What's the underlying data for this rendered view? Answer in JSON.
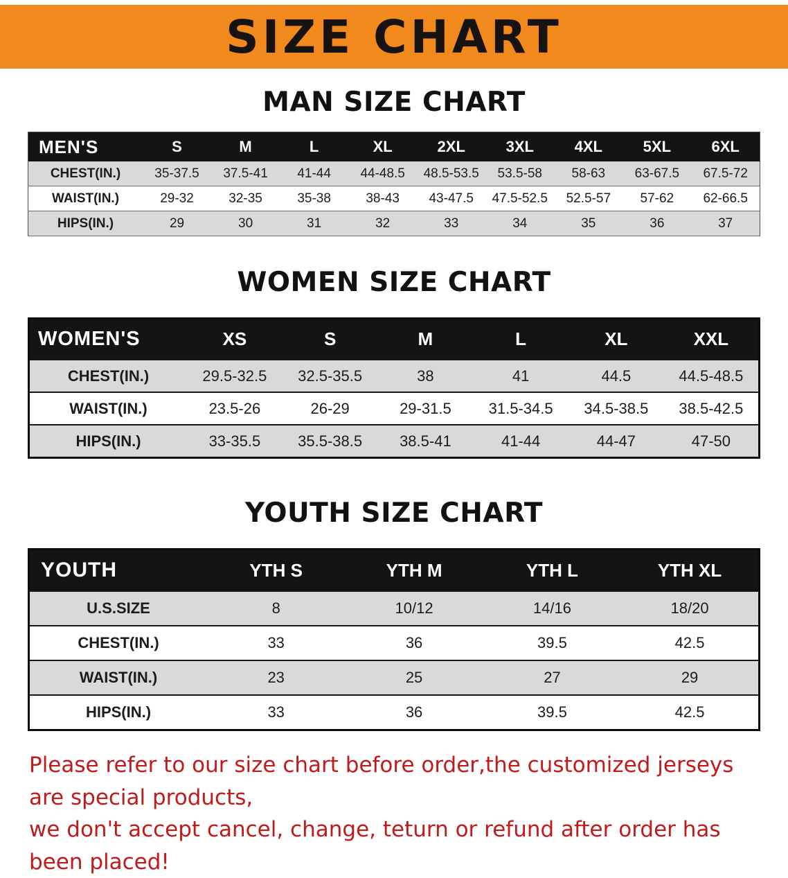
{
  "page": {
    "title": "SIZE CHART"
  },
  "colors": {
    "banner_bg": "#F2891C",
    "banner_text": "#171310",
    "header_row_bg": "#141414",
    "header_row_text": "#FFFFFF",
    "row_shade_bg": "#D9D9D9",
    "row_plain_bg": "#FFFFFF",
    "note_text": "#C21A1A"
  },
  "sections": [
    {
      "id": "man",
      "heading": "MAN SIZE CHART",
      "table": {
        "label_header": "MEN'S",
        "size_headers": [
          "S",
          "M",
          "L",
          "XL",
          "2XL",
          "3XL",
          "4XL",
          "5XL",
          "6XL"
        ],
        "rows": [
          {
            "label": "CHEST(IN.)",
            "values": [
              "35-37.5",
              "37.5-41",
              "41-44",
              "44-48.5",
              "48.5-53.5",
              "53.5-58",
              "58-63",
              "63-67.5",
              "67.5-72"
            ]
          },
          {
            "label": "WAIST(IN.)",
            "values": [
              "29-32",
              "32-35",
              "35-38",
              "38-43",
              "43-47.5",
              "47.5-52.5",
              "52.5-57",
              "57-62",
              "62-66.5"
            ]
          },
          {
            "label": "HIPS(IN.)",
            "values": [
              "29",
              "30",
              "31",
              "32",
              "33",
              "34",
              "35",
              "36",
              "37"
            ]
          }
        ]
      }
    },
    {
      "id": "women",
      "heading": "WOMEN SIZE CHART",
      "table": {
        "label_header": "WOMEN'S",
        "size_headers": [
          "XS",
          "S",
          "M",
          "L",
          "XL",
          "XXL"
        ],
        "rows": [
          {
            "label": "CHEST(IN.)",
            "values": [
              "29.5-32.5",
              "32.5-35.5",
              "38",
              "41",
              "44.5",
              "44.5-48.5"
            ]
          },
          {
            "label": "WAIST(IN.)",
            "values": [
              "23.5-26",
              "26-29",
              "29-31.5",
              "31.5-34.5",
              "34.5-38.5",
              "38.5-42.5"
            ]
          },
          {
            "label": "HIPS(IN.)",
            "values": [
              "33-35.5",
              "35.5-38.5",
              "38.5-41",
              "41-44",
              "44-47",
              "47-50"
            ]
          }
        ]
      }
    },
    {
      "id": "youth",
      "heading": "YOUTH SIZE CHART",
      "table": {
        "label_header": "YOUTH",
        "size_headers": [
          "YTH S",
          "YTH M",
          "YTH L",
          "YTH XL"
        ],
        "rows": [
          {
            "label": "U.S.SIZE",
            "values": [
              "8",
              "10/12",
              "14/16",
              "18/20"
            ]
          },
          {
            "label": "CHEST(IN.)",
            "values": [
              "33",
              "36",
              "39.5",
              "42.5"
            ]
          },
          {
            "label": "WAIST(IN.)",
            "values": [
              "23",
              "25",
              "27",
              "29"
            ]
          },
          {
            "label": "HIPS(IN.)",
            "values": [
              "33",
              "36",
              "39.5",
              "42.5"
            ]
          }
        ]
      }
    }
  ],
  "footer": {
    "line1": "Please refer to our size chart before order,the customized jerseys are special products,",
    "line2": "we don't accept cancel, change, teturn or refund after order has been placed!"
  }
}
